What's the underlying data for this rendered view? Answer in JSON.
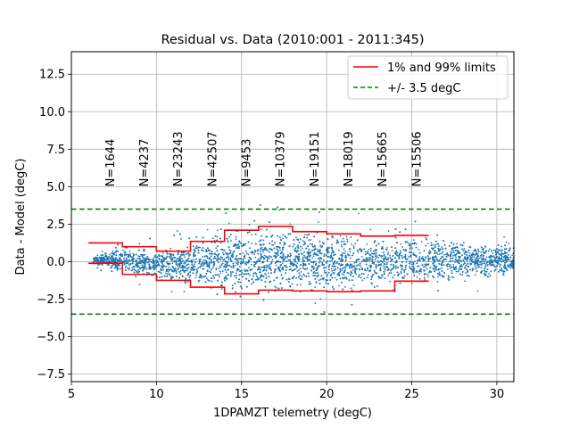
{
  "chart_data": {
    "type": "scatter",
    "title": "Residual vs. Data (2010:001 - 2011:345)",
    "xlabel": "1DPAMZT telemetry (degC)",
    "ylabel": "Data - Model (degC)",
    "xlim": [
      5,
      31
    ],
    "ylim": [
      -8,
      14
    ],
    "xticks": [
      5,
      10,
      15,
      20,
      25,
      30
    ],
    "yticks": [
      -7.5,
      -5.0,
      -2.5,
      0.0,
      2.5,
      5.0,
      7.5,
      10.0,
      12.5
    ],
    "xtick_labels": [
      "5",
      "10",
      "15",
      "20",
      "25",
      "30"
    ],
    "ytick_labels": [
      "−7.5",
      "−5.0",
      "−2.5",
      "0.0",
      "2.5",
      "5.0",
      "7.5",
      "10.0",
      "12.5"
    ],
    "grid": true,
    "legend_position": "top-right",
    "series": [
      {
        "name": "1% and 99% limits",
        "kind": "step",
        "color": "#ff0000",
        "bin_edges": [
          6,
          8,
          10,
          12,
          14,
          16,
          18,
          20,
          22,
          24,
          26
        ],
        "upper": [
          1.25,
          1.0,
          0.7,
          1.35,
          2.1,
          2.35,
          2.0,
          1.85,
          1.7,
          1.75
        ],
        "lower": [
          -0.1,
          -0.85,
          -1.25,
          -1.7,
          -2.15,
          -1.9,
          -1.95,
          -2.0,
          -1.95,
          -1.3
        ]
      },
      {
        "name": "+/- 3.5 degC",
        "kind": "hline",
        "color": "#008000",
        "values": [
          3.5,
          -3.5
        ]
      },
      {
        "kind": "scatter-cloud",
        "color": "#1f77b4",
        "x_range": [
          6.3,
          31
        ],
        "center": [
          [
            6.3,
            0.1
          ],
          [
            8,
            0.1
          ],
          [
            10,
            -0.2
          ],
          [
            12,
            -0.2
          ],
          [
            14,
            0.0
          ],
          [
            16,
            0.2
          ],
          [
            18,
            0.1
          ],
          [
            20,
            0.0
          ],
          [
            22,
            0.0
          ],
          [
            24,
            -0.05
          ],
          [
            26,
            0.05
          ],
          [
            28,
            0.1
          ],
          [
            30,
            0.1
          ],
          [
            31,
            0.1
          ]
        ],
        "halfwidth": [
          [
            6.3,
            0.25
          ],
          [
            7,
            0.5
          ],
          [
            8,
            0.95
          ],
          [
            10,
            1.0
          ],
          [
            12,
            1.5
          ],
          [
            14,
            2.15
          ],
          [
            16,
            2.2
          ],
          [
            18,
            2.1
          ],
          [
            20,
            2.0
          ],
          [
            22,
            1.85
          ],
          [
            24,
            1.75
          ],
          [
            26,
            1.55
          ],
          [
            28,
            1.35
          ],
          [
            30,
            1.1
          ],
          [
            31,
            0.9
          ]
        ]
      }
    ],
    "bin_counts": [
      {
        "x": 7.3,
        "label": "N=1644"
      },
      {
        "x": 9.3,
        "label": "N=4237"
      },
      {
        "x": 11.3,
        "label": "N=23243"
      },
      {
        "x": 13.3,
        "label": "N=42507"
      },
      {
        "x": 15.3,
        "label": "N=9453"
      },
      {
        "x": 17.3,
        "label": "N=10379"
      },
      {
        "x": 19.3,
        "label": "N=19151"
      },
      {
        "x": 21.3,
        "label": "N=18019"
      },
      {
        "x": 23.3,
        "label": "N=15665"
      },
      {
        "x": 25.3,
        "label": "N=15506"
      }
    ],
    "bin_count_label_y": 5.0
  }
}
